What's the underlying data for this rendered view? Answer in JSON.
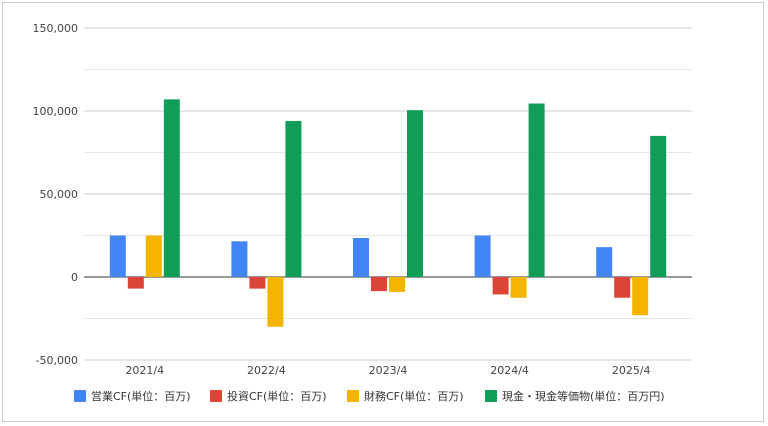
{
  "chart_data": {
    "type": "bar",
    "title": "",
    "xlabel": "",
    "ylabel": "",
    "categories": [
      "2021/4",
      "2022/4",
      "2023/4",
      "2024/4",
      "2025/4"
    ],
    "ylim": [
      -50000,
      150000
    ],
    "yticks": [
      150000,
      100000,
      50000,
      0,
      -50000
    ],
    "ytick_labels": [
      "150,000",
      "100,000",
      "50,000",
      "0",
      "-50,000"
    ],
    "grid": true,
    "legend_position": "bottom",
    "series": [
      {
        "name": "営業CF(単位：百万)",
        "color": "#4285f4",
        "values": [
          25000,
          21500,
          23500,
          25000,
          18000
        ]
      },
      {
        "name": "投資CF(単位：百万)",
        "color": "#db4437",
        "values": [
          -7000,
          -7000,
          -8500,
          -10500,
          -12500
        ]
      },
      {
        "name": "財務CF(単位：百万)",
        "color": "#f4b400",
        "values": [
          25000,
          -30000,
          -9000,
          -12500,
          -23000
        ]
      },
      {
        "name": "現金・現金等価物(単位：百万円)",
        "color": "#0f9d58",
        "values": [
          107000,
          94000,
          100500,
          104500,
          85000
        ]
      }
    ]
  }
}
